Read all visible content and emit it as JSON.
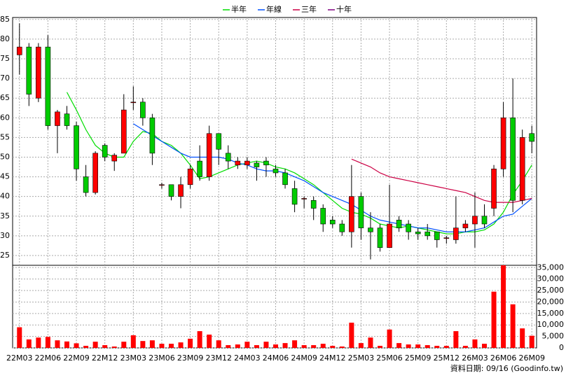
{
  "chart_data": {
    "type": "candlestick",
    "categories": [
      "22M03",
      null,
      null,
      "22M06",
      null,
      null,
      "22M09",
      null,
      null,
      "22M12",
      null,
      null,
      "23M03",
      null,
      null,
      "23M06",
      null,
      null,
      "23M09",
      null,
      null,
      "23M12",
      null,
      null,
      "24M03",
      null,
      null,
      "24M06",
      null,
      null,
      "24M09",
      null,
      null,
      "24M12",
      null,
      null,
      "25M03",
      null,
      null,
      "25M06",
      null,
      null,
      "25M09",
      null,
      null,
      "25M12",
      null,
      null,
      "26M03",
      null,
      null,
      "26M06",
      null,
      null,
      "26M09"
    ],
    "open": [
      76,
      78,
      65,
      78,
      58,
      61,
      58,
      45,
      41,
      53,
      49,
      51,
      64,
      64,
      60,
      43,
      43,
      40,
      43,
      49,
      45,
      56,
      51,
      48,
      48,
      48.5,
      49,
      47,
      46,
      42,
      39.5,
      39,
      37,
      34,
      33,
      31,
      40,
      32,
      32,
      27,
      34,
      33,
      31,
      31,
      31,
      29.5,
      29,
      32,
      33,
      35,
      37,
      47,
      60,
      39,
      56
    ],
    "high": [
      84,
      79,
      79,
      81,
      62,
      63,
      59,
      48,
      51.5,
      53.5,
      51,
      66,
      68,
      65,
      61,
      43.5,
      43,
      45,
      48,
      53,
      58,
      56,
      53,
      50,
      50,
      49,
      50,
      48,
      47,
      44,
      40,
      40,
      38,
      35,
      34,
      48,
      41,
      36,
      33,
      43,
      35,
      34,
      32,
      33,
      31,
      30,
      40,
      34,
      41,
      38,
      48,
      64,
      70,
      57,
      58
    ],
    "low": [
      71,
      63,
      64,
      57,
      51,
      57,
      44,
      40,
      40.5,
      49,
      46.5,
      51,
      62,
      58,
      48,
      42,
      39,
      37,
      42,
      44,
      44,
      48,
      47,
      47,
      47,
      44,
      45,
      45,
      42,
      36,
      37,
      34,
      31,
      32,
      30,
      27,
      29,
      24,
      26,
      27,
      31,
      29,
      29,
      29,
      27,
      28,
      28,
      31,
      27,
      32,
      35,
      45,
      36,
      38,
      51
    ],
    "close": [
      78,
      66,
      78,
      58,
      61.5,
      58,
      47,
      41,
      51,
      50,
      50.5,
      62,
      64,
      60,
      51,
      43,
      40,
      43,
      47,
      45,
      56,
      52,
      49,
      49,
      49,
      47.5,
      48,
      46,
      43,
      38,
      39.5,
      37,
      33,
      33,
      31,
      40,
      32,
      31,
      27,
      33,
      32,
      31,
      30.5,
      30,
      29,
      29.5,
      32,
      33,
      35,
      33,
      47,
      60,
      39,
      55,
      54
    ],
    "up_color": "#ff0000",
    "down_color": "#00cc00",
    "ylim": [
      22.5,
      85.5
    ],
    "yticks": [
      25,
      30,
      35,
      40,
      45,
      50,
      55,
      60,
      65,
      70,
      75,
      80,
      85
    ],
    "grid": true,
    "series": [
      {
        "name": "半年",
        "color": "#00dd00",
        "values": [
          null,
          null,
          null,
          null,
          null,
          66.5,
          62,
          57,
          53,
          51,
          50,
          50,
          54,
          56.5,
          56,
          54,
          53,
          51,
          48,
          44.5,
          45,
          46,
          47,
          48,
          48.5,
          49,
          48.5,
          47.5,
          47,
          46,
          44.5,
          43,
          41,
          39,
          37,
          36,
          35.5,
          34.5,
          33,
          32.5,
          32,
          32.5,
          32,
          31.5,
          31,
          30.5,
          30.5,
          31,
          31,
          31.5,
          33,
          36,
          40.5,
          44,
          48
        ]
      },
      {
        "name": "年線",
        "color": "#0050ff",
        "values": [
          null,
          null,
          null,
          null,
          null,
          null,
          null,
          null,
          null,
          null,
          null,
          null,
          58.5,
          57,
          55.5,
          54,
          52.5,
          51,
          50,
          50,
          50,
          50,
          49.5,
          48.5,
          48,
          47,
          46.5,
          46.5,
          46,
          45,
          44,
          42.5,
          41,
          40,
          39,
          38,
          36.5,
          35,
          34,
          33.5,
          33,
          32.5,
          32,
          32,
          31.5,
          31,
          31,
          31,
          31.5,
          32,
          33.5,
          35,
          35.5,
          37.5,
          39.5
        ]
      },
      {
        "name": "三年",
        "color": "#cc0044",
        "values": [
          null,
          null,
          null,
          null,
          null,
          null,
          null,
          null,
          null,
          null,
          null,
          null,
          null,
          null,
          null,
          null,
          null,
          null,
          null,
          null,
          null,
          null,
          null,
          null,
          null,
          null,
          null,
          null,
          null,
          null,
          null,
          null,
          null,
          null,
          null,
          49.5,
          48.5,
          47.5,
          46,
          45,
          44.5,
          44,
          43.5,
          43,
          42.5,
          42,
          41.5,
          41,
          40,
          39,
          38.5,
          38.5,
          38.5,
          39,
          39.5
        ]
      },
      {
        "name": "十年",
        "color": "#800080",
        "values": [
          null,
          null,
          null,
          null,
          null,
          null,
          null,
          null,
          null,
          null,
          null,
          null,
          null,
          null,
          null,
          null,
          null,
          null,
          null,
          null,
          null,
          null,
          null,
          null,
          null,
          null,
          null,
          null,
          null,
          null,
          null,
          null,
          null,
          null,
          null,
          null,
          null,
          null,
          null,
          null,
          null,
          null,
          null,
          null,
          null,
          null,
          null,
          null,
          null,
          null,
          null,
          null,
          null,
          null,
          null
        ]
      }
    ],
    "volume": {
      "color": "#ff0000",
      "values": [
        9000,
        3700,
        4500,
        4800,
        3300,
        2800,
        2000,
        900,
        2700,
        1200,
        600,
        2700,
        5500,
        3000,
        3300,
        1800,
        1800,
        2400,
        4000,
        7300,
        5800,
        3300,
        1200,
        1500,
        2700,
        1200,
        2700,
        1500,
        2100,
        3300,
        1200,
        1200,
        1800,
        900,
        600,
        11000,
        2100,
        4500,
        900,
        8000,
        2100,
        1500,
        1500,
        1200,
        900,
        900,
        7300,
        900,
        3700,
        1800,
        24500,
        36000,
        19000,
        8500,
        5300
      ],
      "ylim": [
        0,
        36000
      ],
      "yticks": [
        0,
        {
          "value": 5000,
          "label": "5,000"
        },
        {
          "value": 10000,
          "label": "10,000"
        },
        {
          "value": 15000,
          "label": "15,000"
        },
        {
          "value": 20000,
          "label": "20,000"
        },
        {
          "value": 25000,
          "label": "25,000"
        },
        {
          "value": 30000,
          "label": "30,000"
        },
        {
          "value": 35000,
          "label": "35,000"
        }
      ]
    },
    "note": "資料日期: 09/16  (Goodinfo.tw)"
  }
}
